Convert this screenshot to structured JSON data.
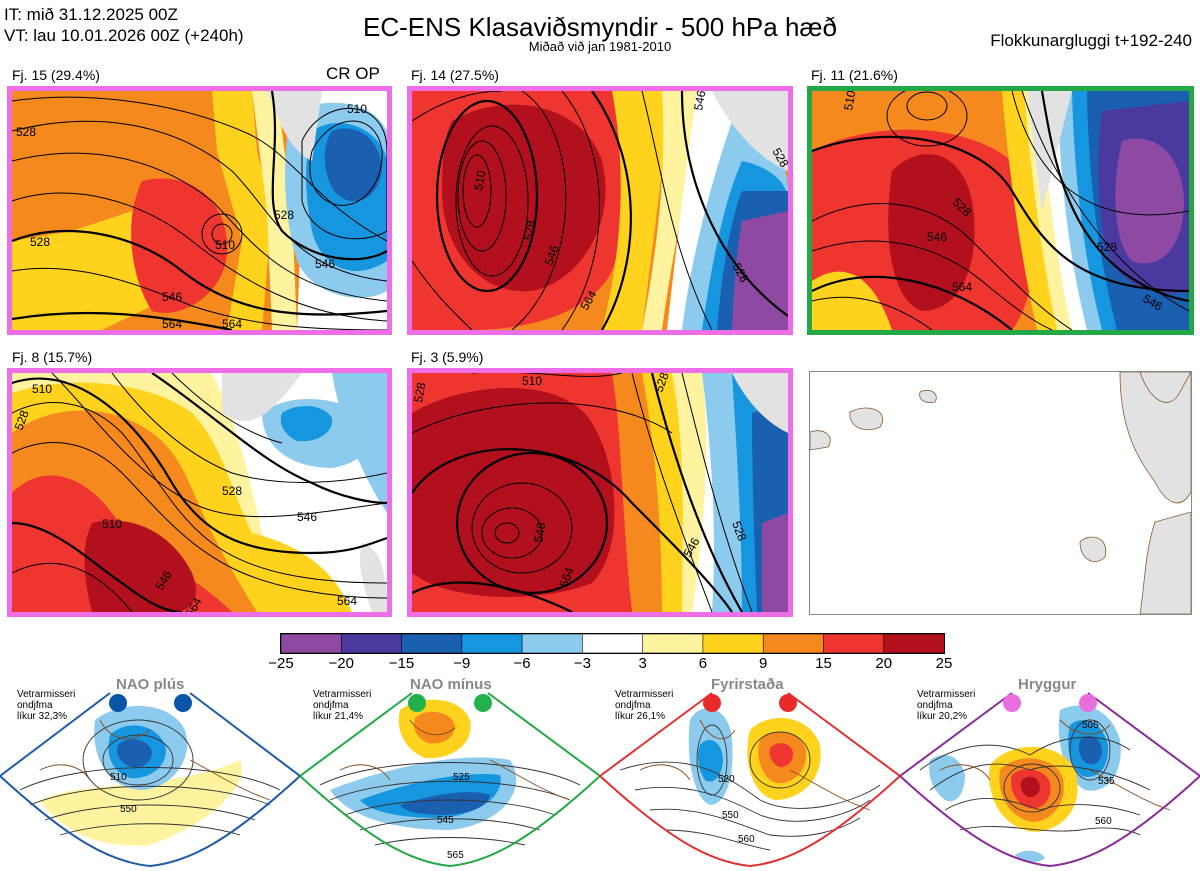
{
  "header": {
    "it": "IT: mið 31.12.2025 00Z",
    "vt": "VT: lau 10.01.2026 00Z  (+240h)",
    "title": "EC-ENS Klasaviðsmyndir - 500 hPa hæð",
    "subtitle": "Miðað við jan 1981-2010",
    "window": "Flokkunargluggi t+192-240"
  },
  "colors": {
    "pink": "#ee6ee8",
    "green": "#22a845",
    "blue_frame": "#1f5aa6",
    "red_frame": "#e03030",
    "purple_frame": "#8a2a9a",
    "land": "#e2e2e2",
    "coast": "#8a5a2a"
  },
  "panels": [
    {
      "label": "Fj. 15 (29.4%)",
      "extra": "CR OP",
      "border": "pink"
    },
    {
      "label": "Fj. 14 (27.5%)",
      "border": "pink"
    },
    {
      "label": "Fj. 11 (21.6%)",
      "border": "green"
    },
    {
      "label": "Fj. 8 (15.7%)",
      "border": "pink"
    },
    {
      "label": "Fj. 3 (5.9%)",
      "border": "pink"
    }
  ],
  "contour_labels": {
    "p1": [
      "510",
      "528",
      "546",
      "564",
      "528",
      "510",
      "546",
      "564",
      "528"
    ],
    "p2": [
      "510",
      "528",
      "546",
      "564",
      "528",
      "546",
      "528"
    ],
    "p3": [
      "510",
      "528",
      "546",
      "564",
      "528",
      "546"
    ],
    "p4": [
      "510",
      "528",
      "546",
      "564",
      "528",
      "546",
      "564",
      "510"
    ],
    "p5": [
      "510",
      "528",
      "546",
      "564",
      "528",
      "546",
      "528"
    ]
  },
  "chart_data": {
    "type": "heatmap",
    "title": "EC-ENS Klasaviðsmyndir - 500 hPa hæð",
    "colorbar": {
      "ticks": [
        "−25",
        "−20",
        "−15",
        "−9",
        "−6",
        "−3",
        "3",
        "6",
        "9",
        "15",
        "20",
        "25"
      ],
      "colors": [
        "#8e4aa3",
        "#4a3aa0",
        "#1a5fb0",
        "#1596df",
        "#8ccbee",
        "#ffffff",
        "#fff3a0",
        "#ffd21e",
        "#f5891e",
        "#ee3530",
        "#b1101c"
      ]
    }
  },
  "regimes": [
    {
      "title": "NAO plús",
      "note": [
        "Vetrarmisseri",
        "ondjfma",
        "líkur 32,3%"
      ],
      "dot": "#0a55a8",
      "border": "#1f5aa6",
      "labels": [
        "510",
        "550"
      ]
    },
    {
      "title": "NAO mínus",
      "note": [
        "Vetrarmisseri",
        "ondjfma",
        "líkur 21,4%"
      ],
      "dot": "#22b14c",
      "border": "#22a845",
      "labels": [
        "525",
        "545",
        "565"
      ]
    },
    {
      "title": "Fyrirstaða",
      "note": [
        "Vetrarmisseri",
        "ondjfma",
        "líkur 26,1%"
      ],
      "dot": "#e82a2a",
      "border": "#e03030",
      "labels": [
        "520",
        "550",
        "560"
      ]
    },
    {
      "title": "Hryggur",
      "note": [
        "Vetrarmisseri",
        "ondjfma",
        "líkur 20,2%"
      ],
      "dot": "#e86ee0",
      "border": "#8a2a9a",
      "labels": [
        "505",
        "535",
        "560"
      ]
    }
  ]
}
